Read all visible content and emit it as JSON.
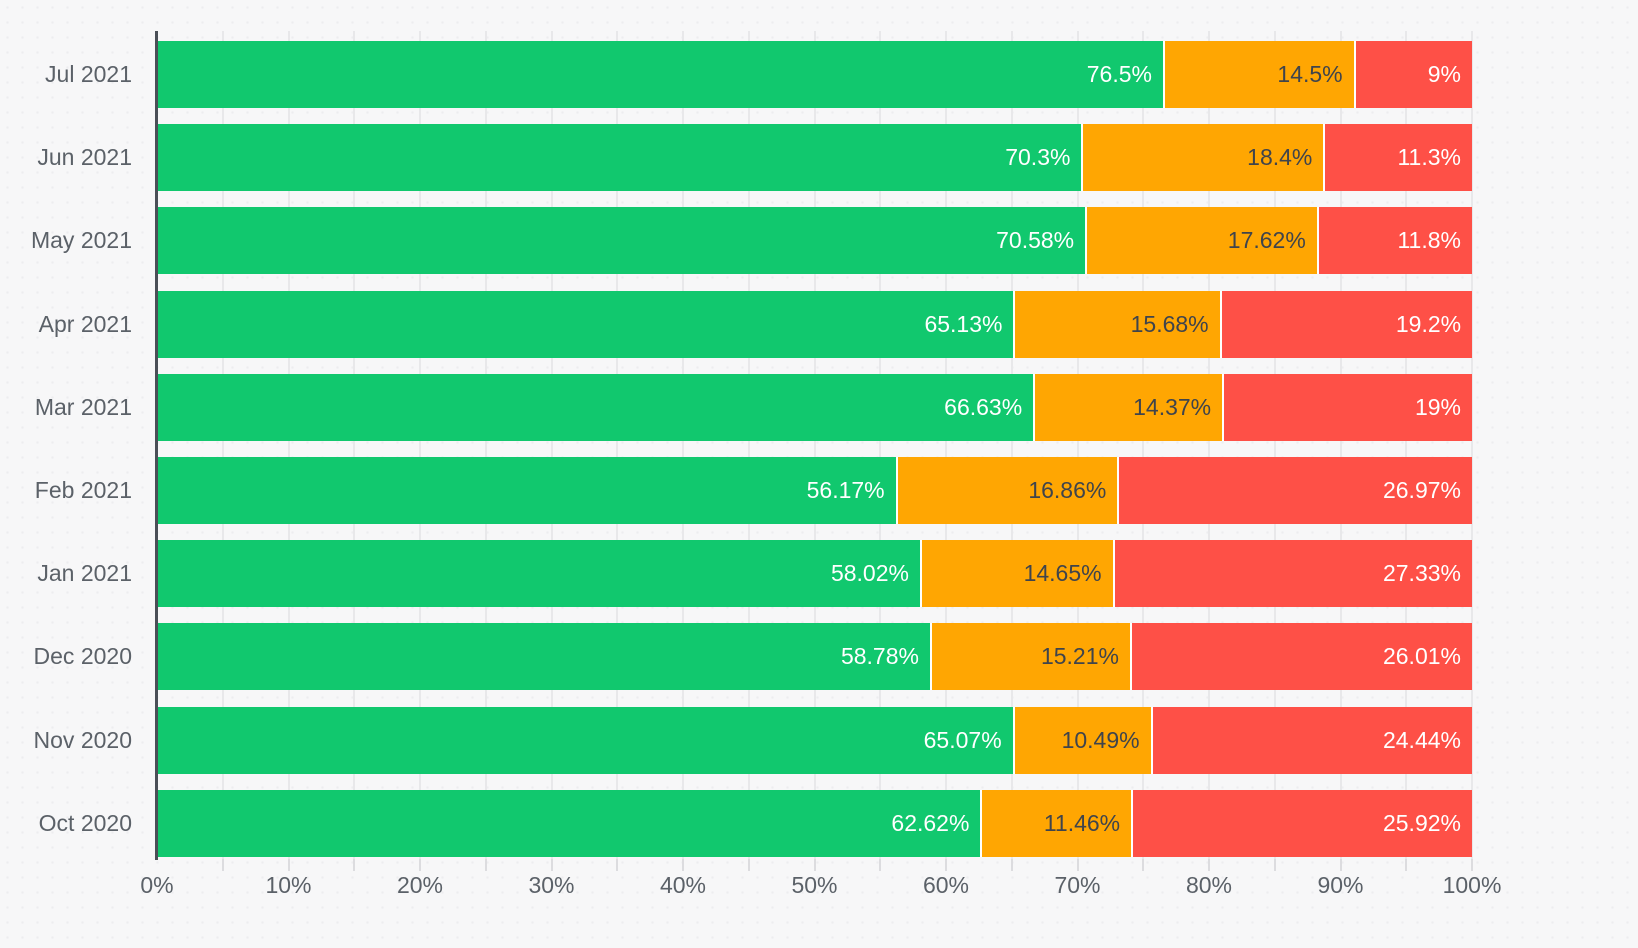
{
  "chart_data": {
    "type": "bar",
    "orientation": "horizontal",
    "stacked": true,
    "title": "",
    "xlabel": "",
    "ylabel": "",
    "xlim": [
      0,
      100
    ],
    "grid": true,
    "grid_minor_step_percent": 5,
    "legend": "none",
    "x_ticks": [
      "0%",
      "10%",
      "20%",
      "30%",
      "40%",
      "50%",
      "60%",
      "70%",
      "80%",
      "90%",
      "100%"
    ],
    "categories": [
      "Jul 2021",
      "Jun 2021",
      "May 2021",
      "Apr 2021",
      "Mar 2021",
      "Feb 2021",
      "Jan 2021",
      "Dec 2020",
      "Nov 2020",
      "Oct 2020"
    ],
    "series": [
      {
        "name": "green",
        "color": "#11c86e",
        "label_color": "#ffffff",
        "values": [
          76.5,
          70.3,
          70.58,
          65.13,
          66.63,
          56.17,
          58.02,
          58.78,
          65.07,
          62.62
        ],
        "labels": [
          "76.5%",
          "70.3%",
          "70.58%",
          "65.13%",
          "66.63%",
          "56.17%",
          "58.02%",
          "58.78%",
          "65.07%",
          "62.62%"
        ]
      },
      {
        "name": "orange",
        "color": "#ffa602",
        "label_color": "#3f444c",
        "values": [
          14.5,
          18.4,
          17.62,
          15.68,
          14.37,
          16.86,
          14.65,
          15.21,
          10.49,
          11.46
        ],
        "labels": [
          "14.5%",
          "18.4%",
          "17.62%",
          "15.68%",
          "14.37%",
          "16.86%",
          "14.65%",
          "15.21%",
          "10.49%",
          "11.46%"
        ]
      },
      {
        "name": "red",
        "color": "#fe5047",
        "label_color": "#ffffff",
        "values": [
          9,
          11.3,
          11.8,
          19.2,
          19,
          26.97,
          27.33,
          26.01,
          24.44,
          25.92
        ],
        "labels": [
          "9%",
          "11.3%",
          "11.8%",
          "19.2%",
          "19%",
          "26.97%",
          "27.33%",
          "26.01%",
          "24.44%",
          "25.92%"
        ]
      }
    ]
  },
  "colors": {
    "background": "#f7f7f8",
    "gridline": "#e8e8ea",
    "axis_line": "#4a4f57",
    "tick_mark": "#dcdcdf",
    "axis_text": "#5b6168",
    "separator": "#ffffff"
  }
}
